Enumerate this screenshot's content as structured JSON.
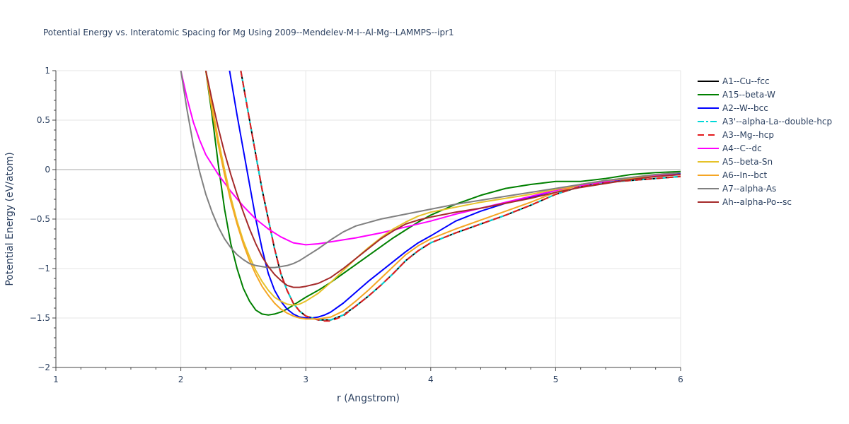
{
  "chart_data": {
    "type": "line",
    "title": "Potential Energy vs. Interatomic Spacing for Mg Using 2009--Mendelev-M-I--Al-Mg--LAMMPS--ipr1",
    "xlabel": "r (Angstrom)",
    "ylabel": "Potential Energy (eV/atom)",
    "xlim": [
      1,
      6
    ],
    "ylim": [
      -2,
      1
    ],
    "xticks": [
      1,
      2,
      3,
      4,
      5,
      6
    ],
    "xtick_labels": [
      "1",
      "2",
      "3",
      "4",
      "5",
      "6"
    ],
    "yticks": [
      -2,
      -1.5,
      -1,
      -0.5,
      0,
      0.5,
      1
    ],
    "ytick_labels": [
      "−2",
      "−1.5",
      "−1",
      "−0.5",
      "0",
      "0.5",
      "1"
    ],
    "grid": true,
    "legend_position": "top-right",
    "series": [
      {
        "name": "A1--Cu--fcc",
        "color": "#000000",
        "dash": "solid",
        "x": [
          2.48,
          2.55,
          2.6,
          2.65,
          2.7,
          2.75,
          2.8,
          2.85,
          2.9,
          2.95,
          3.0,
          3.05,
          3.1,
          3.15,
          3.2,
          3.3,
          3.4,
          3.5,
          3.6,
          3.7,
          3.8,
          3.9,
          4.0,
          4.2,
          4.4,
          4.6,
          4.8,
          5.0,
          5.2,
          5.4,
          5.6,
          5.8,
          6.0
        ],
        "y": [
          1.0,
          0.5,
          0.15,
          -0.2,
          -0.5,
          -0.8,
          -1.05,
          -1.22,
          -1.35,
          -1.43,
          -1.48,
          -1.5,
          -1.52,
          -1.52,
          -1.52,
          -1.47,
          -1.38,
          -1.28,
          -1.17,
          -1.05,
          -0.92,
          -0.82,
          -0.74,
          -0.64,
          -0.55,
          -0.46,
          -0.36,
          -0.25,
          -0.17,
          -0.13,
          -0.11,
          -0.09,
          -0.07
        ]
      },
      {
        "name": "A15--beta-W",
        "color": "#008000",
        "dash": "solid",
        "x": [
          2.2,
          2.25,
          2.3,
          2.35,
          2.4,
          2.45,
          2.5,
          2.55,
          2.6,
          2.65,
          2.7,
          2.75,
          2.8,
          2.85,
          2.9,
          2.95,
          3.0,
          3.1,
          3.2,
          3.3,
          3.4,
          3.5,
          3.6,
          3.7,
          3.8,
          3.9,
          4.0,
          4.2,
          4.4,
          4.6,
          4.8,
          5.0,
          5.2,
          5.4,
          5.6,
          5.8,
          6.0
        ],
        "y": [
          1.0,
          0.55,
          0.05,
          -0.4,
          -0.75,
          -1.0,
          -1.2,
          -1.33,
          -1.42,
          -1.46,
          -1.47,
          -1.46,
          -1.44,
          -1.41,
          -1.37,
          -1.33,
          -1.29,
          -1.22,
          -1.14,
          -1.05,
          -0.96,
          -0.87,
          -0.78,
          -0.69,
          -0.61,
          -0.53,
          -0.46,
          -0.35,
          -0.26,
          -0.19,
          -0.15,
          -0.12,
          -0.12,
          -0.09,
          -0.05,
          -0.03,
          -0.02
        ]
      },
      {
        "name": "A2--W--bcc",
        "color": "#0000ff",
        "dash": "solid",
        "x": [
          2.39,
          2.45,
          2.5,
          2.55,
          2.6,
          2.65,
          2.7,
          2.75,
          2.8,
          2.85,
          2.9,
          2.95,
          3.0,
          3.05,
          3.1,
          3.15,
          3.2,
          3.3,
          3.4,
          3.5,
          3.6,
          3.7,
          3.8,
          3.9,
          4.0,
          4.2,
          4.4,
          4.6,
          4.8,
          5.0,
          5.2,
          5.4,
          5.6,
          5.8,
          6.0
        ],
        "y": [
          1.0,
          0.55,
          0.2,
          -0.15,
          -0.5,
          -0.8,
          -1.05,
          -1.22,
          -1.33,
          -1.41,
          -1.46,
          -1.49,
          -1.5,
          -1.5,
          -1.49,
          -1.47,
          -1.44,
          -1.35,
          -1.24,
          -1.13,
          -1.03,
          -0.93,
          -0.83,
          -0.74,
          -0.67,
          -0.52,
          -0.42,
          -0.34,
          -0.28,
          -0.21,
          -0.16,
          -0.12,
          -0.09,
          -0.06,
          -0.04
        ]
      },
      {
        "name": "A3'--alpha-La--double-hcp",
        "color": "#00d8d8",
        "dash": "dashdot",
        "x": [
          2.48,
          2.55,
          2.6,
          2.65,
          2.7,
          2.75,
          2.8,
          2.85,
          2.9,
          2.95,
          3.0,
          3.05,
          3.1,
          3.15,
          3.2,
          3.3,
          3.4,
          3.5,
          3.6,
          3.7,
          3.8,
          3.9,
          4.0,
          4.2,
          4.4,
          4.6,
          4.8,
          5.0,
          5.2,
          5.4,
          5.6,
          5.8,
          6.0
        ],
        "y": [
          1.0,
          0.5,
          0.15,
          -0.2,
          -0.5,
          -0.8,
          -1.05,
          -1.22,
          -1.35,
          -1.43,
          -1.48,
          -1.5,
          -1.52,
          -1.52,
          -1.52,
          -1.47,
          -1.38,
          -1.28,
          -1.17,
          -1.05,
          -0.92,
          -0.82,
          -0.74,
          -0.64,
          -0.55,
          -0.46,
          -0.36,
          -0.25,
          -0.17,
          -0.13,
          -0.11,
          -0.09,
          -0.07
        ]
      },
      {
        "name": "A3--Mg--hcp",
        "color": "#e31a1c",
        "dash": "dash",
        "x": [
          2.48,
          2.55,
          2.6,
          2.65,
          2.7,
          2.75,
          2.8,
          2.85,
          2.9,
          2.95,
          3.0,
          3.05,
          3.1,
          3.15,
          3.2,
          3.3,
          3.4,
          3.5,
          3.6,
          3.7,
          3.8,
          3.9,
          4.0,
          4.2,
          4.4,
          4.6,
          4.8,
          5.0,
          5.2,
          5.4,
          5.6,
          5.8,
          6.0
        ],
        "y": [
          1.0,
          0.5,
          0.15,
          -0.2,
          -0.5,
          -0.8,
          -1.05,
          -1.22,
          -1.35,
          -1.43,
          -1.48,
          -1.5,
          -1.52,
          -1.53,
          -1.53,
          -1.48,
          -1.38,
          -1.28,
          -1.17,
          -1.05,
          -0.92,
          -0.82,
          -0.74,
          -0.64,
          -0.55,
          -0.46,
          -0.36,
          -0.25,
          -0.17,
          -0.13,
          -0.11,
          -0.09,
          -0.07
        ]
      },
      {
        "name": "A4--C--dc",
        "color": "#ff00ff",
        "dash": "solid",
        "x": [
          2.0,
          2.05,
          2.1,
          2.15,
          2.2,
          2.3,
          2.4,
          2.5,
          2.6,
          2.7,
          2.8,
          2.9,
          3.0,
          3.1,
          3.2,
          3.3,
          3.4,
          3.6,
          3.8,
          4.0,
          4.2,
          4.4,
          4.6,
          4.8,
          5.0,
          5.2,
          5.4,
          5.6,
          5.8,
          6.0
        ],
        "y": [
          1.0,
          0.72,
          0.48,
          0.3,
          0.15,
          -0.05,
          -0.22,
          -0.37,
          -0.5,
          -0.6,
          -0.68,
          -0.74,
          -0.76,
          -0.75,
          -0.73,
          -0.71,
          -0.69,
          -0.64,
          -0.58,
          -0.52,
          -0.45,
          -0.39,
          -0.33,
          -0.27,
          -0.21,
          -0.16,
          -0.12,
          -0.08,
          -0.06,
          -0.05
        ]
      },
      {
        "name": "A5--beta-Sn",
        "color": "#e6c229",
        "dash": "solid",
        "x": [
          2.2,
          2.25,
          2.3,
          2.35,
          2.4,
          2.45,
          2.5,
          2.55,
          2.6,
          2.65,
          2.7,
          2.75,
          2.8,
          2.85,
          2.9,
          2.95,
          3.0,
          3.1,
          3.2,
          3.3,
          3.4,
          3.5,
          3.6,
          3.7,
          3.8,
          3.9,
          4.0,
          4.2,
          4.4,
          4.6,
          4.8,
          5.0,
          5.2,
          5.4,
          5.6,
          5.8,
          6.0
        ],
        "y": [
          1.0,
          0.65,
          0.3,
          0.0,
          -0.28,
          -0.52,
          -0.72,
          -0.88,
          -1.02,
          -1.13,
          -1.22,
          -1.29,
          -1.33,
          -1.36,
          -1.37,
          -1.36,
          -1.33,
          -1.25,
          -1.14,
          -1.02,
          -0.9,
          -0.79,
          -0.69,
          -0.6,
          -0.53,
          -0.47,
          -0.43,
          -0.38,
          -0.33,
          -0.29,
          -0.25,
          -0.2,
          -0.15,
          -0.11,
          -0.08,
          -0.05,
          -0.03
        ]
      },
      {
        "name": "A6--In--bct",
        "color": "#f5a623",
        "dash": "solid",
        "x": [
          2.2,
          2.25,
          2.3,
          2.35,
          2.4,
          2.45,
          2.5,
          2.55,
          2.6,
          2.65,
          2.7,
          2.75,
          2.8,
          2.85,
          2.9,
          2.95,
          3.0,
          3.05,
          3.1,
          3.15,
          3.2,
          3.3,
          3.4,
          3.5,
          3.6,
          3.7,
          3.8,
          3.9,
          4.0,
          4.2,
          4.4,
          4.6,
          4.8,
          5.0,
          5.2,
          5.4,
          5.6,
          5.8,
          6.0
        ],
        "y": [
          1.0,
          0.6,
          0.25,
          -0.05,
          -0.32,
          -0.55,
          -0.75,
          -0.92,
          -1.06,
          -1.18,
          -1.27,
          -1.35,
          -1.41,
          -1.45,
          -1.48,
          -1.5,
          -1.51,
          -1.51,
          -1.51,
          -1.5,
          -1.49,
          -1.43,
          -1.33,
          -1.22,
          -1.1,
          -0.98,
          -0.86,
          -0.77,
          -0.7,
          -0.6,
          -0.51,
          -0.42,
          -0.33,
          -0.23,
          -0.15,
          -0.11,
          -0.09,
          -0.07,
          -0.05
        ]
      },
      {
        "name": "A7--alpha-As",
        "color": "#808080",
        "dash": "solid",
        "x": [
          2.0,
          2.05,
          2.1,
          2.15,
          2.2,
          2.25,
          2.3,
          2.35,
          2.4,
          2.45,
          2.5,
          2.55,
          2.6,
          2.65,
          2.7,
          2.75,
          2.8,
          2.85,
          2.9,
          2.95,
          3.0,
          3.1,
          3.2,
          3.3,
          3.4,
          3.6,
          3.8,
          4.0,
          4.2,
          4.4,
          4.6,
          4.8,
          5.0,
          5.2,
          5.4,
          5.6,
          5.8,
          6.0
        ],
        "y": [
          1.0,
          0.6,
          0.25,
          -0.02,
          -0.25,
          -0.43,
          -0.58,
          -0.7,
          -0.79,
          -0.86,
          -0.91,
          -0.95,
          -0.97,
          -0.98,
          -0.99,
          -0.99,
          -0.98,
          -0.97,
          -0.95,
          -0.92,
          -0.88,
          -0.8,
          -0.71,
          -0.63,
          -0.57,
          -0.5,
          -0.45,
          -0.4,
          -0.35,
          -0.31,
          -0.27,
          -0.23,
          -0.19,
          -0.15,
          -0.11,
          -0.08,
          -0.05,
          -0.03
        ]
      },
      {
        "name": "Ah--alpha-Po--sc",
        "color": "#a52a2a",
        "dash": "solid",
        "x": [
          2.2,
          2.25,
          2.3,
          2.35,
          2.4,
          2.45,
          2.5,
          2.55,
          2.6,
          2.65,
          2.7,
          2.75,
          2.8,
          2.85,
          2.9,
          2.95,
          3.0,
          3.1,
          3.2,
          3.3,
          3.4,
          3.5,
          3.6,
          3.7,
          3.8,
          3.9,
          4.0,
          4.2,
          4.4,
          4.6,
          4.8,
          5.0,
          5.2,
          5.4,
          5.6,
          5.8,
          6.0
        ],
        "y": [
          1.0,
          0.7,
          0.42,
          0.17,
          -0.05,
          -0.25,
          -0.43,
          -0.6,
          -0.75,
          -0.88,
          -0.98,
          -1.06,
          -1.12,
          -1.17,
          -1.19,
          -1.19,
          -1.18,
          -1.15,
          -1.09,
          -1.0,
          -0.9,
          -0.8,
          -0.7,
          -0.62,
          -0.55,
          -0.51,
          -0.48,
          -0.43,
          -0.39,
          -0.34,
          -0.29,
          -0.23,
          -0.18,
          -0.14,
          -0.1,
          -0.07,
          -0.05
        ]
      }
    ]
  }
}
